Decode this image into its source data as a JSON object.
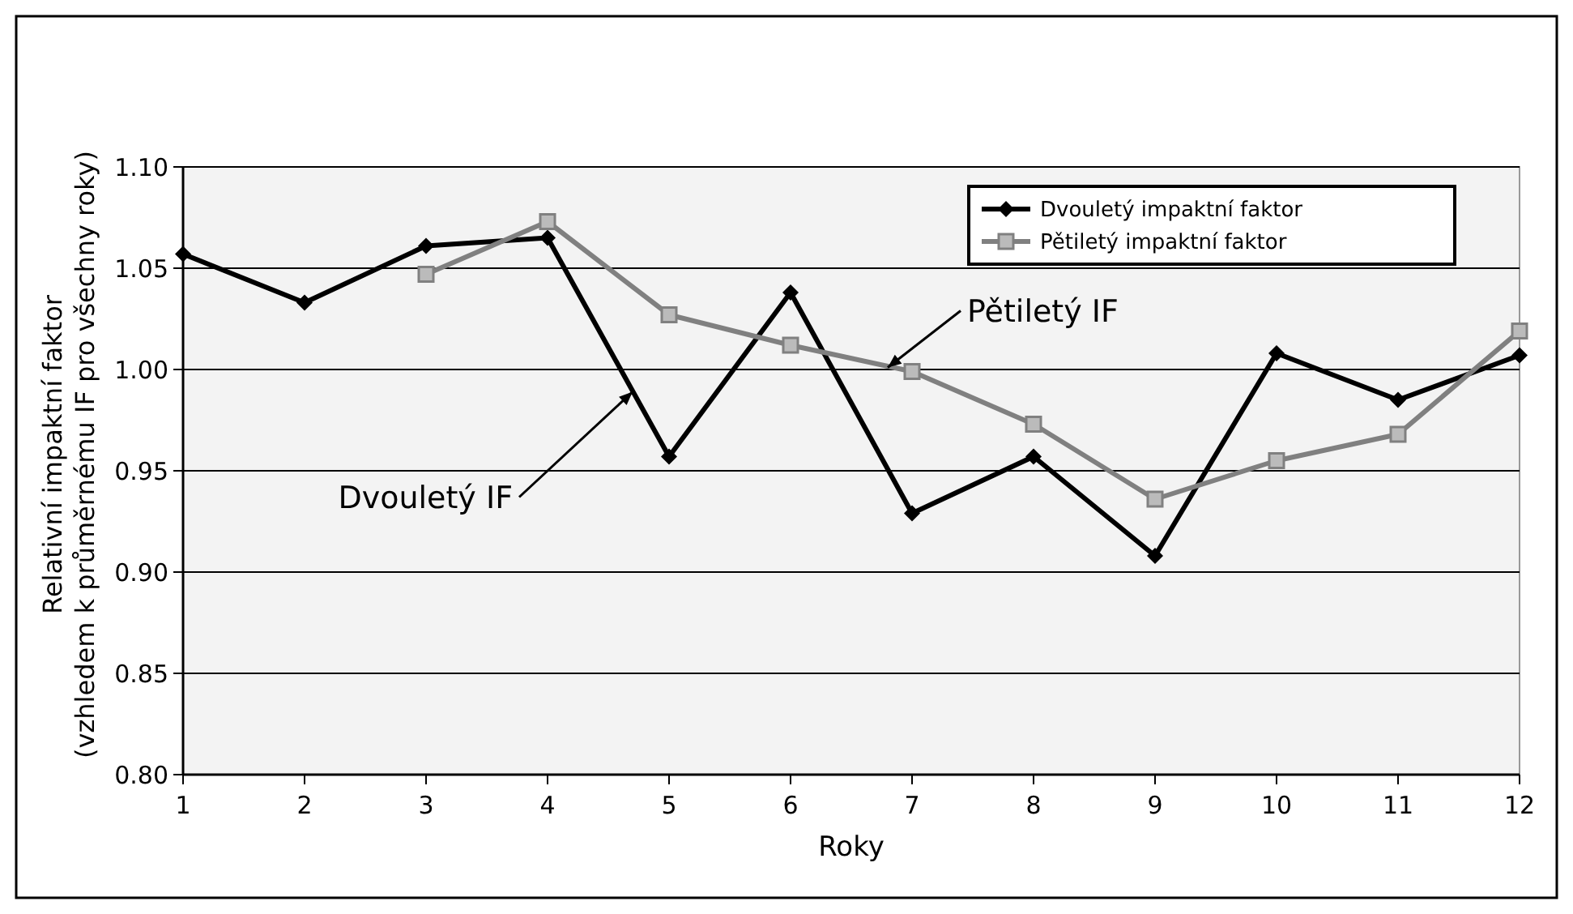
{
  "chart_data": {
    "type": "line",
    "xlabel": "Roky",
    "ylabel": "Relativní impaktní faktor\n(vzhledem k průměrnému IF pro všechny roky)",
    "x": [
      1,
      2,
      3,
      4,
      5,
      6,
      7,
      8,
      9,
      10,
      11,
      12
    ],
    "xlim": [
      1,
      12
    ],
    "xticks": [
      1,
      2,
      3,
      4,
      5,
      6,
      7,
      8,
      9,
      10,
      11,
      12
    ],
    "ylim": [
      0.8,
      1.1
    ],
    "yticks": [
      {
        "value": 0.8,
        "label": "0.80"
      },
      {
        "value": 0.85,
        "label": "0.85"
      },
      {
        "value": 0.9,
        "label": "0.90"
      },
      {
        "value": 0.95,
        "label": "0.95"
      },
      {
        "value": 1.0,
        "label": "1.00"
      },
      {
        "value": 1.05,
        "label": "1.05"
      },
      {
        "value": 1.1,
        "label": "1.10"
      }
    ],
    "grid": "y",
    "legend": "top right",
    "line_style": "solid",
    "series": [
      {
        "name": "Dvouletý impaktní faktor",
        "color": "#000000",
        "marker": "diamond",
        "values": [
          1.057,
          1.033,
          1.061,
          1.065,
          0.957,
          1.038,
          0.929,
          0.957,
          0.908,
          1.008,
          0.985,
          1.007
        ]
      },
      {
        "name": "Pětiletý impaktní faktor",
        "color": "#808080",
        "marker": "square",
        "values": [
          null,
          null,
          1.047,
          1.073,
          1.027,
          1.012,
          0.999,
          0.973,
          0.936,
          0.955,
          0.968,
          1.019
        ]
      }
    ],
    "annotations": [
      {
        "text": "Dvouletý IF",
        "x": 4.7,
        "y": 0.989
      },
      {
        "text": "Pětiletý IF",
        "x": 6.8,
        "y": 1.001
      }
    ]
  }
}
